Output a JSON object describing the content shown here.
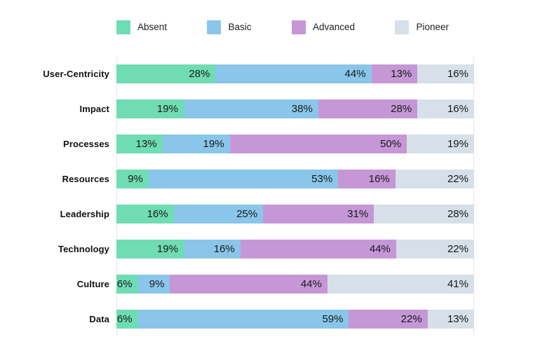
{
  "chart_data": {
    "type": "bar",
    "orientation": "horizontal",
    "stacked": true,
    "stacked_percent": true,
    "legend_position": "top",
    "grid": "vertical-edge-lines-only",
    "xlim": [
      0,
      100
    ],
    "value_suffix": "%",
    "categories": [
      "User-Centricity",
      "Impact",
      "Processes",
      "Resources",
      "Leadership",
      "Technology",
      "Culture",
      "Data"
    ],
    "series": [
      {
        "name": "Absent",
        "color": "#6FDCB3",
        "values": [
          28,
          19,
          13,
          9,
          16,
          19,
          6,
          6
        ]
      },
      {
        "name": "Basic",
        "color": "#8AC6E9",
        "values": [
          44,
          38,
          19,
          53,
          25,
          16,
          9,
          59
        ]
      },
      {
        "name": "Advanced",
        "color": "#C697D6",
        "values": [
          13,
          28,
          50,
          16,
          31,
          44,
          44,
          22
        ]
      },
      {
        "name": "Pioneer",
        "color": "#D7E0E8",
        "values": [
          16,
          16,
          19,
          22,
          28,
          22,
          41,
          13
        ]
      }
    ],
    "colors": {
      "gridline": "#e4eaef",
      "category_label": "#0f1114",
      "value_label": "#17191d",
      "legend_label": "#1c1e22",
      "background": "#ffffff"
    }
  }
}
